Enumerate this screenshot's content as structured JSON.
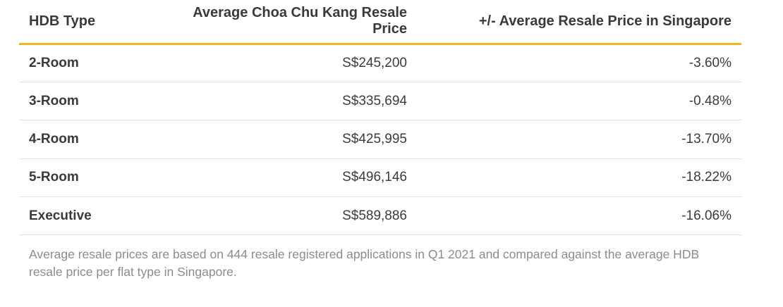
{
  "table": {
    "headers": [
      "HDB Type",
      "Average Choa Chu Kang Resale Price",
      "+/- Average Resale Price in Singapore"
    ],
    "rows": [
      {
        "type": "2-Room",
        "price": "S$245,200",
        "diff": "-3.60%"
      },
      {
        "type": "3-Room",
        "price": "S$335,694",
        "diff": "-0.48%"
      },
      {
        "type": "4-Room",
        "price": "S$425,995",
        "diff": "-13.70%"
      },
      {
        "type": "5-Room",
        "price": "S$496,146",
        "diff": "-18.22%"
      },
      {
        "type": "Executive",
        "price": "S$589,886",
        "diff": "-16.06%"
      }
    ]
  },
  "footnote": "Average resale prices are based on 444 resale registered applications in Q1 2021 and compared against the average HDB resale price per flat type in Singapore.",
  "colors": {
    "header_rule": "#f2b51c",
    "row_divider": "#e3e3e3",
    "text": "#3a3a3a",
    "footnote_text": "#8c8c8c"
  }
}
